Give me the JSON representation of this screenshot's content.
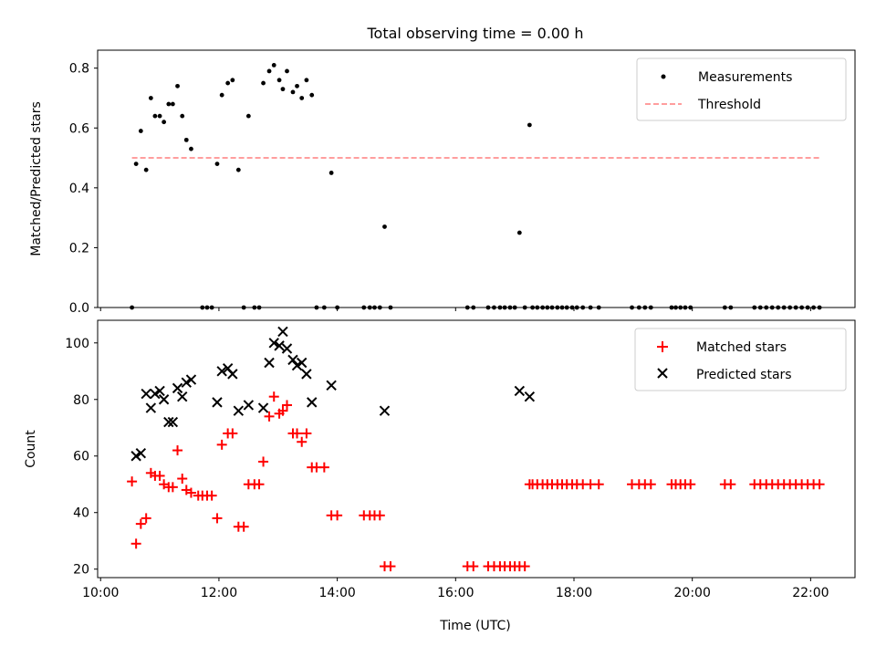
{
  "title": "Total observing time = 0.00 h",
  "xlabel": "Time (UTC)",
  "x_ticks": [
    {
      "hour": 10,
      "label": "10:00"
    },
    {
      "hour": 12,
      "label": "12:00"
    },
    {
      "hour": 14,
      "label": "14:00"
    },
    {
      "hour": 16,
      "label": "16:00"
    },
    {
      "hour": 18,
      "label": "18:00"
    },
    {
      "hour": 20,
      "label": "20:00"
    },
    {
      "hour": 22,
      "label": "22:00"
    }
  ],
  "xlim": [
    9.95,
    22.75
  ],
  "colors": {
    "measurement": "#000000",
    "threshold": "#ff7f7f",
    "matched": "#ff0000",
    "predicted": "#000000"
  },
  "chart_data": [
    {
      "type": "scatter",
      "ylabel": "Matched/Predicted stars",
      "ylim": [
        0,
        0.86
      ],
      "y_ticks": [
        {
          "value": 0.0,
          "label": "0.0"
        },
        {
          "value": 0.2,
          "label": "0.2"
        },
        {
          "value": 0.4,
          "label": "0.4"
        },
        {
          "value": 0.6,
          "label": "0.6"
        },
        {
          "value": 0.8,
          "label": "0.8"
        }
      ],
      "legend_position": "top-right",
      "threshold": {
        "name": "Threshold",
        "value": 0.5,
        "x_range": [
          10.53,
          22.17
        ]
      },
      "series": [
        {
          "name": "Measurements",
          "marker": "dot",
          "points": [
            [
              10.53,
              0.0
            ],
            [
              10.6,
              0.48
            ],
            [
              10.68,
              0.59
            ],
            [
              10.77,
              0.46
            ],
            [
              10.85,
              0.7
            ],
            [
              10.92,
              0.64
            ],
            [
              11.0,
              0.64
            ],
            [
              11.07,
              0.62
            ],
            [
              11.15,
              0.68
            ],
            [
              11.22,
              0.68
            ],
            [
              11.3,
              0.74
            ],
            [
              11.38,
              0.64
            ],
            [
              11.45,
              0.56
            ],
            [
              11.53,
              0.53
            ],
            [
              11.72,
              0.0
            ],
            [
              11.8,
              0.0
            ],
            [
              11.88,
              0.0
            ],
            [
              11.97,
              0.48
            ],
            [
              12.05,
              0.71
            ],
            [
              12.15,
              0.75
            ],
            [
              12.23,
              0.76
            ],
            [
              12.33,
              0.46
            ],
            [
              12.42,
              0.0
            ],
            [
              12.5,
              0.64
            ],
            [
              12.6,
              0.0
            ],
            [
              12.68,
              0.0
            ],
            [
              12.75,
              0.75
            ],
            [
              12.85,
              0.79
            ],
            [
              12.93,
              0.81
            ],
            [
              13.02,
              0.76
            ],
            [
              13.08,
              0.73
            ],
            [
              13.15,
              0.79
            ],
            [
              13.25,
              0.72
            ],
            [
              13.32,
              0.74
            ],
            [
              13.4,
              0.7
            ],
            [
              13.48,
              0.76
            ],
            [
              13.57,
              0.71
            ],
            [
              13.65,
              0.0
            ],
            [
              13.78,
              0.0
            ],
            [
              13.9,
              0.45
            ],
            [
              14.0,
              0.0
            ],
            [
              14.45,
              0.0
            ],
            [
              14.55,
              0.0
            ],
            [
              14.63,
              0.0
            ],
            [
              14.72,
              0.0
            ],
            [
              14.8,
              0.27
            ],
            [
              14.9,
              0.0
            ],
            [
              16.2,
              0.0
            ],
            [
              16.3,
              0.0
            ],
            [
              16.55,
              0.0
            ],
            [
              16.65,
              0.0
            ],
            [
              16.75,
              0.0
            ],
            [
              16.83,
              0.0
            ],
            [
              16.92,
              0.0
            ],
            [
              17.0,
              0.0
            ],
            [
              17.08,
              0.25
            ],
            [
              17.17,
              0.0
            ],
            [
              17.25,
              0.61
            ],
            [
              17.3,
              0.0
            ],
            [
              17.38,
              0.0
            ],
            [
              17.47,
              0.0
            ],
            [
              17.55,
              0.0
            ],
            [
              17.63,
              0.0
            ],
            [
              17.72,
              0.0
            ],
            [
              17.8,
              0.0
            ],
            [
              17.88,
              0.0
            ],
            [
              17.97,
              0.0
            ],
            [
              18.05,
              0.0
            ],
            [
              18.15,
              0.0
            ],
            [
              18.28,
              0.0
            ],
            [
              18.42,
              0.0
            ],
            [
              18.98,
              0.0
            ],
            [
              19.1,
              0.0
            ],
            [
              19.2,
              0.0
            ],
            [
              19.3,
              0.0
            ],
            [
              19.65,
              0.0
            ],
            [
              19.72,
              0.0
            ],
            [
              19.8,
              0.0
            ],
            [
              19.88,
              0.0
            ],
            [
              19.97,
              0.0
            ],
            [
              20.55,
              0.0
            ],
            [
              20.65,
              0.0
            ],
            [
              21.05,
              0.0
            ],
            [
              21.15,
              0.0
            ],
            [
              21.25,
              0.0
            ],
            [
              21.35,
              0.0
            ],
            [
              21.45,
              0.0
            ],
            [
              21.55,
              0.0
            ],
            [
              21.65,
              0.0
            ],
            [
              21.75,
              0.0
            ],
            [
              21.85,
              0.0
            ],
            [
              21.95,
              0.0
            ],
            [
              22.05,
              0.0
            ],
            [
              22.15,
              0.0
            ]
          ]
        }
      ]
    },
    {
      "type": "scatter",
      "ylabel": "Count",
      "ylim": [
        17,
        108
      ],
      "y_ticks": [
        {
          "value": 20,
          "label": "20"
        },
        {
          "value": 40,
          "label": "40"
        },
        {
          "value": 60,
          "label": "60"
        },
        {
          "value": 80,
          "label": "80"
        },
        {
          "value": 100,
          "label": "100"
        }
      ],
      "legend_position": "top-right",
      "series": [
        {
          "name": "Matched stars",
          "marker": "plus",
          "points": [
            [
              10.53,
              51
            ],
            [
              10.6,
              29
            ],
            [
              10.68,
              36
            ],
            [
              10.77,
              38
            ],
            [
              10.85,
              54
            ],
            [
              10.92,
              53
            ],
            [
              11.0,
              53
            ],
            [
              11.07,
              50
            ],
            [
              11.15,
              49
            ],
            [
              11.22,
              49
            ],
            [
              11.3,
              62
            ],
            [
              11.38,
              52
            ],
            [
              11.45,
              48
            ],
            [
              11.53,
              47
            ],
            [
              11.65,
              46
            ],
            [
              11.72,
              46
            ],
            [
              11.8,
              46
            ],
            [
              11.88,
              46
            ],
            [
              11.97,
              38
            ],
            [
              12.05,
              64
            ],
            [
              12.15,
              68
            ],
            [
              12.23,
              68
            ],
            [
              12.33,
              35
            ],
            [
              12.42,
              35
            ],
            [
              12.5,
              50
            ],
            [
              12.6,
              50
            ],
            [
              12.68,
              50
            ],
            [
              12.75,
              58
            ],
            [
              12.85,
              74
            ],
            [
              12.93,
              81
            ],
            [
              13.02,
              75
            ],
            [
              13.08,
              76
            ],
            [
              13.15,
              78
            ],
            [
              13.25,
              68
            ],
            [
              13.32,
              68
            ],
            [
              13.4,
              65
            ],
            [
              13.48,
              68
            ],
            [
              13.57,
              56
            ],
            [
              13.65,
              56
            ],
            [
              13.78,
              56
            ],
            [
              13.9,
              39
            ],
            [
              14.0,
              39
            ],
            [
              14.45,
              39
            ],
            [
              14.55,
              39
            ],
            [
              14.63,
              39
            ],
            [
              14.72,
              39
            ],
            [
              14.8,
              21
            ],
            [
              14.9,
              21
            ],
            [
              16.2,
              21
            ],
            [
              16.3,
              21
            ],
            [
              16.55,
              21
            ],
            [
              16.65,
              21
            ],
            [
              16.75,
              21
            ],
            [
              16.83,
              21
            ],
            [
              16.92,
              21
            ],
            [
              17.0,
              21
            ],
            [
              17.08,
              21
            ],
            [
              17.17,
              21
            ],
            [
              17.25,
              50
            ],
            [
              17.3,
              50
            ],
            [
              17.38,
              50
            ],
            [
              17.47,
              50
            ],
            [
              17.55,
              50
            ],
            [
              17.63,
              50
            ],
            [
              17.72,
              50
            ],
            [
              17.8,
              50
            ],
            [
              17.88,
              50
            ],
            [
              17.97,
              50
            ],
            [
              18.05,
              50
            ],
            [
              18.15,
              50
            ],
            [
              18.28,
              50
            ],
            [
              18.42,
              50
            ],
            [
              18.98,
              50
            ],
            [
              19.1,
              50
            ],
            [
              19.2,
              50
            ],
            [
              19.3,
              50
            ],
            [
              19.65,
              50
            ],
            [
              19.72,
              50
            ],
            [
              19.8,
              50
            ],
            [
              19.88,
              50
            ],
            [
              19.97,
              50
            ],
            [
              20.55,
              50
            ],
            [
              20.65,
              50
            ],
            [
              21.05,
              50
            ],
            [
              21.15,
              50
            ],
            [
              21.25,
              50
            ],
            [
              21.35,
              50
            ],
            [
              21.45,
              50
            ],
            [
              21.55,
              50
            ],
            [
              21.65,
              50
            ],
            [
              21.75,
              50
            ],
            [
              21.85,
              50
            ],
            [
              21.95,
              50
            ],
            [
              22.05,
              50
            ],
            [
              22.15,
              50
            ]
          ]
        },
        {
          "name": "Predicted stars",
          "marker": "x",
          "points": [
            [
              10.6,
              60
            ],
            [
              10.68,
              61
            ],
            [
              10.77,
              82
            ],
            [
              10.85,
              77
            ],
            [
              10.92,
              82
            ],
            [
              11.0,
              83
            ],
            [
              11.07,
              80
            ],
            [
              11.15,
              72
            ],
            [
              11.22,
              72
            ],
            [
              11.3,
              84
            ],
            [
              11.38,
              81
            ],
            [
              11.45,
              86
            ],
            [
              11.53,
              87
            ],
            [
              11.97,
              79
            ],
            [
              12.05,
              90
            ],
            [
              12.15,
              91
            ],
            [
              12.23,
              89
            ],
            [
              12.33,
              76
            ],
            [
              12.5,
              78
            ],
            [
              12.75,
              77
            ],
            [
              12.85,
              93
            ],
            [
              12.93,
              100
            ],
            [
              13.02,
              99
            ],
            [
              13.08,
              104
            ],
            [
              13.15,
              98
            ],
            [
              13.25,
              94
            ],
            [
              13.32,
              92
            ],
            [
              13.4,
              93
            ],
            [
              13.48,
              89
            ],
            [
              13.57,
              79
            ],
            [
              13.9,
              85
            ],
            [
              14.8,
              76
            ],
            [
              17.08,
              83
            ],
            [
              17.25,
              81
            ]
          ]
        }
      ]
    }
  ]
}
